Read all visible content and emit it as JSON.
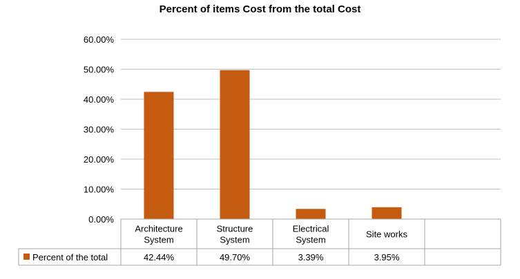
{
  "chart_data": {
    "type": "bar",
    "title": "Percent of items Cost from the total Cost",
    "categories": [
      [
        "Architecture",
        "System"
      ],
      [
        "Structure",
        "System"
      ],
      [
        "Electrical",
        "System"
      ],
      [
        "Site  works"
      ]
    ],
    "series": [
      {
        "name": "Percent of the total",
        "values": [
          42.44,
          49.7,
          3.39,
          3.95
        ],
        "labels": [
          "42.44%",
          "49.70%",
          "3.39%",
          "3.95%"
        ],
        "color": "#C55A11"
      }
    ],
    "y_ticks": [
      "0.00%",
      "10.00%",
      "20.00%",
      "30.00%",
      "40.00%",
      "50.00%",
      "60.00%"
    ],
    "ylim": [
      0,
      60
    ],
    "grid": true,
    "legend": "data-table",
    "gridline_color": "#BFBFBF",
    "table_border_color": "#A6A6A6"
  }
}
